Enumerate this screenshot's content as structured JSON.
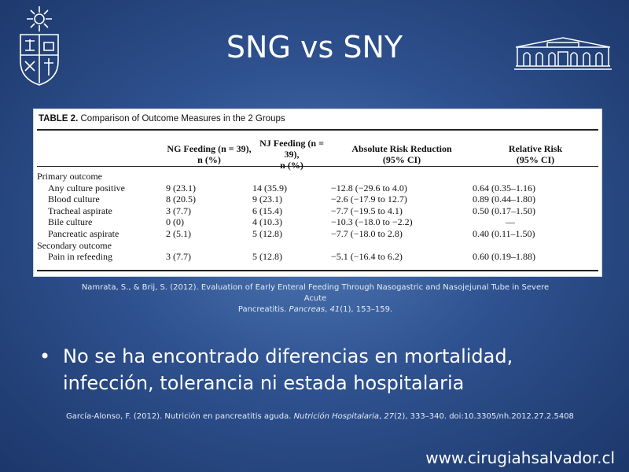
{
  "slide": {
    "title": "SNG vs SNY",
    "logo_left_icon": "university-crest-icon",
    "logo_right_icon": "hospital-building-icon"
  },
  "table": {
    "caption_label": "TABLE 2.",
    "caption_text": "Comparison of Outcome Measures in the 2 Groups",
    "headers": {
      "col1": "",
      "col2_line1": "NG Feeding (n = 39),",
      "col2_line2": "n (%)",
      "col3_line1": "NJ Feeding (n = 39),",
      "col3_line2": "n (%)",
      "col4_line1": "Absolute Risk Reduction",
      "col4_line2": "(95% CI)",
      "col5_line1": "Relative Risk",
      "col5_line2": "(95% CI)"
    },
    "rows": [
      {
        "label": "Primary outcome",
        "ng": "",
        "nj": "",
        "arr": "",
        "rr": ""
      },
      {
        "label": "Any culture positive",
        "ng": "9 (23.1)",
        "nj": "14 (35.9)",
        "arr": "−12.8 (−29.6 to 4.0)",
        "rr": "0.64 (0.35–1.16)"
      },
      {
        "label": "Blood culture",
        "ng": "8 (20.5)",
        "nj": "9 (23.1)",
        "arr": "−2.6 (−17.9 to 12.7)",
        "rr": "0.89 (0.44–1.80)"
      },
      {
        "label": "Tracheal aspirate",
        "ng": "3 (7.7)",
        "nj": "6 (15.4)",
        "arr": "−7.7 (−19.5 to 4.1)",
        "rr": "0.50 (0.17–1.50)"
      },
      {
        "label": "Bile culture",
        "ng": "0 (0)",
        "nj": "4 (10.3)",
        "arr": "−10.3 (−18.0 to −2.2)",
        "rr": "—"
      },
      {
        "label": "Pancreatic aspirate",
        "ng": "2 (5.1)",
        "nj": "5 (12.8)",
        "arr": "−7.7 (−18.0 to 2.8)",
        "rr": "0.40 (0.11–1.50)"
      },
      {
        "label": "Secondary outcome",
        "ng": "",
        "nj": "",
        "arr": "",
        "rr": ""
      },
      {
        "label": "Pain in refeeding",
        "ng": "3 (7.7)",
        "nj": "5 (12.8)",
        "arr": "−5.1 (−16.4 to 6.2)",
        "rr": "0.60 (0.19–1.88)"
      }
    ]
  },
  "citation1": {
    "line1": "Namrata, S., & Brij, S. (2012). Evaluation of Early Enteral Feeding Through Nasogastric and Nasojejunal Tube in Severe Acute",
    "line2_pre": "Pancreatitis. ",
    "line2_journal": "Pancreas",
    "line2_sep": ", ",
    "line2_volume": "41",
    "line2_post": "(1), 153–159."
  },
  "bullet": {
    "marker": "•",
    "text": "No se ha encontrado diferencias en mortalidad, infección, tolerancia ni estada hospitalaria"
  },
  "citation2": {
    "pre": "García-Alonso, F. (2012). Nutrición en pancreatitis aguda. ",
    "journal": "Nutrición Hospitalaria",
    "sep": ", ",
    "volume": "27",
    "post": "(2), 333–340. doi:10.3305/nh.2012.27.2.5408"
  },
  "footer": {
    "url": "www.cirugiahsalvador.cl"
  },
  "colors": {
    "background_center": "#4f78b4",
    "background_edge": "#1c376a",
    "text": "#ffffff"
  }
}
